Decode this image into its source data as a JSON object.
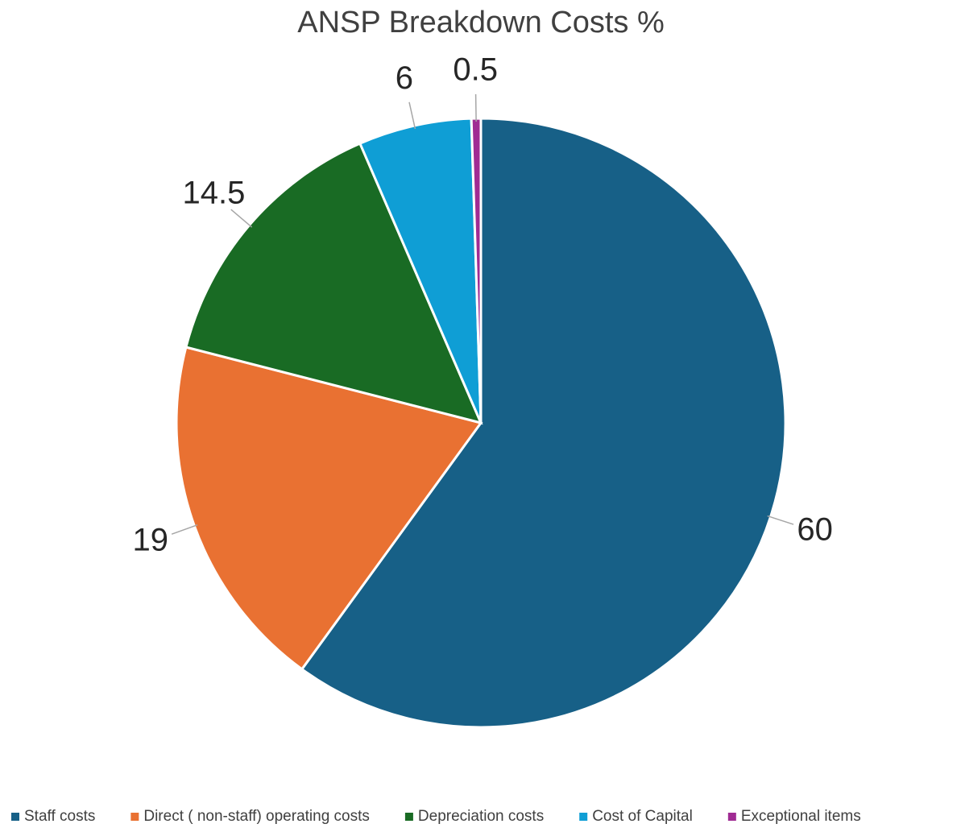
{
  "chart_data": {
    "type": "pie",
    "title": "ANSP Breakdown Costs %",
    "categories": [
      "Staff costs",
      "Direct ( non-staff) operating costs",
      "Depreciation costs",
      "Cost of Capital",
      "Exceptional items"
    ],
    "values": [
      60,
      19,
      14.5,
      6,
      0.5
    ],
    "colors": [
      "#176087",
      "#e97132",
      "#196b24",
      "#0f9ed5",
      "#a02b93"
    ],
    "legend": "bottom"
  }
}
